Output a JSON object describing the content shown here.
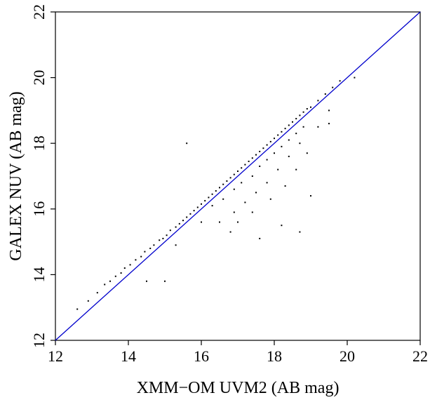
{
  "chart_data": {
    "type": "scatter",
    "xlabel": "XMM−OM UVM2 (AB mag)",
    "ylabel": "GALEX NUV (AB mag)",
    "xlim": [
      12,
      22
    ],
    "ylim": [
      12,
      22
    ],
    "x_ticks": [
      "12",
      "14",
      "16",
      "18",
      "20",
      "22"
    ],
    "y_ticks": [
      "12",
      "14",
      "16",
      "18",
      "20",
      "22"
    ],
    "grid": false,
    "reference_line": {
      "from": [
        12,
        12
      ],
      "to": [
        22,
        22
      ],
      "color": "#0000cc"
    },
    "point_color": "#000000",
    "points": [
      [
        12.6,
        12.95
      ],
      [
        12.9,
        13.2
      ],
      [
        13.15,
        13.45
      ],
      [
        13.35,
        13.7
      ],
      [
        13.5,
        13.8
      ],
      [
        13.65,
        13.95
      ],
      [
        13.8,
        14.05
      ],
      [
        13.9,
        14.2
      ],
      [
        14.05,
        14.3
      ],
      [
        14.2,
        14.45
      ],
      [
        14.35,
        14.55
      ],
      [
        14.45,
        14.7
      ],
      [
        14.6,
        14.8
      ],
      [
        14.7,
        14.9
      ],
      [
        14.85,
        15.05
      ],
      [
        14.95,
        15.1
      ],
      [
        15.05,
        15.2
      ],
      [
        15.15,
        15.35
      ],
      [
        15.3,
        15.45
      ],
      [
        15.4,
        15.55
      ],
      [
        15.5,
        15.65
      ],
      [
        15.6,
        15.75
      ],
      [
        15.7,
        15.85
      ],
      [
        15.8,
        15.95
      ],
      [
        15.9,
        16.05
      ],
      [
        16.0,
        16.15
      ],
      [
        16.1,
        16.25
      ],
      [
        16.2,
        16.35
      ],
      [
        16.3,
        16.45
      ],
      [
        16.4,
        16.55
      ],
      [
        16.5,
        16.65
      ],
      [
        16.6,
        16.75
      ],
      [
        16.7,
        16.85
      ],
      [
        16.8,
        16.95
      ],
      [
        16.9,
        17.05
      ],
      [
        17.0,
        17.15
      ],
      [
        17.1,
        17.25
      ],
      [
        17.2,
        17.35
      ],
      [
        17.3,
        17.45
      ],
      [
        17.4,
        17.55
      ],
      [
        17.5,
        17.65
      ],
      [
        17.6,
        17.75
      ],
      [
        17.7,
        17.85
      ],
      [
        17.8,
        17.95
      ],
      [
        17.9,
        18.05
      ],
      [
        18.0,
        18.15
      ],
      [
        18.1,
        18.25
      ],
      [
        18.2,
        18.35
      ],
      [
        18.3,
        18.45
      ],
      [
        18.4,
        18.55
      ],
      [
        18.5,
        18.65
      ],
      [
        18.6,
        18.75
      ],
      [
        18.7,
        18.85
      ],
      [
        18.8,
        18.95
      ],
      [
        18.9,
        19.05
      ],
      [
        19.0,
        19.1
      ],
      [
        19.2,
        19.3
      ],
      [
        19.4,
        19.5
      ],
      [
        19.6,
        19.7
      ],
      [
        19.8,
        19.9
      ],
      [
        16.3,
        16.1
      ],
      [
        16.6,
        16.3
      ],
      [
        16.9,
        16.6
      ],
      [
        17.1,
        16.8
      ],
      [
        17.4,
        17.0
      ],
      [
        17.6,
        17.3
      ],
      [
        17.8,
        17.5
      ],
      [
        18.0,
        17.7
      ],
      [
        18.2,
        17.9
      ],
      [
        18.4,
        18.1
      ],
      [
        18.6,
        18.3
      ],
      [
        18.8,
        18.5
      ],
      [
        16.5,
        15.6
      ],
      [
        16.9,
        15.9
      ],
      [
        17.2,
        16.2
      ],
      [
        17.5,
        16.5
      ],
      [
        17.8,
        16.8
      ],
      [
        18.1,
        17.2
      ],
      [
        18.4,
        17.6
      ],
      [
        18.7,
        18.0
      ],
      [
        17.0,
        15.6
      ],
      [
        17.4,
        15.9
      ],
      [
        17.9,
        16.3
      ],
      [
        18.3,
        16.7
      ],
      [
        18.6,
        17.2
      ],
      [
        18.9,
        17.7
      ],
      [
        19.2,
        18.5
      ],
      [
        19.5,
        19.0
      ],
      [
        18.2,
        15.5
      ],
      [
        18.7,
        15.3
      ],
      [
        17.6,
        15.1
      ],
      [
        16.8,
        15.3
      ],
      [
        15.3,
        14.9
      ],
      [
        15.0,
        13.8
      ],
      [
        14.5,
        13.8
      ],
      [
        15.6,
        18.0
      ],
      [
        16.0,
        15.6
      ],
      [
        19.0,
        16.4
      ],
      [
        20.2,
        20.0
      ],
      [
        19.5,
        18.6
      ]
    ]
  }
}
